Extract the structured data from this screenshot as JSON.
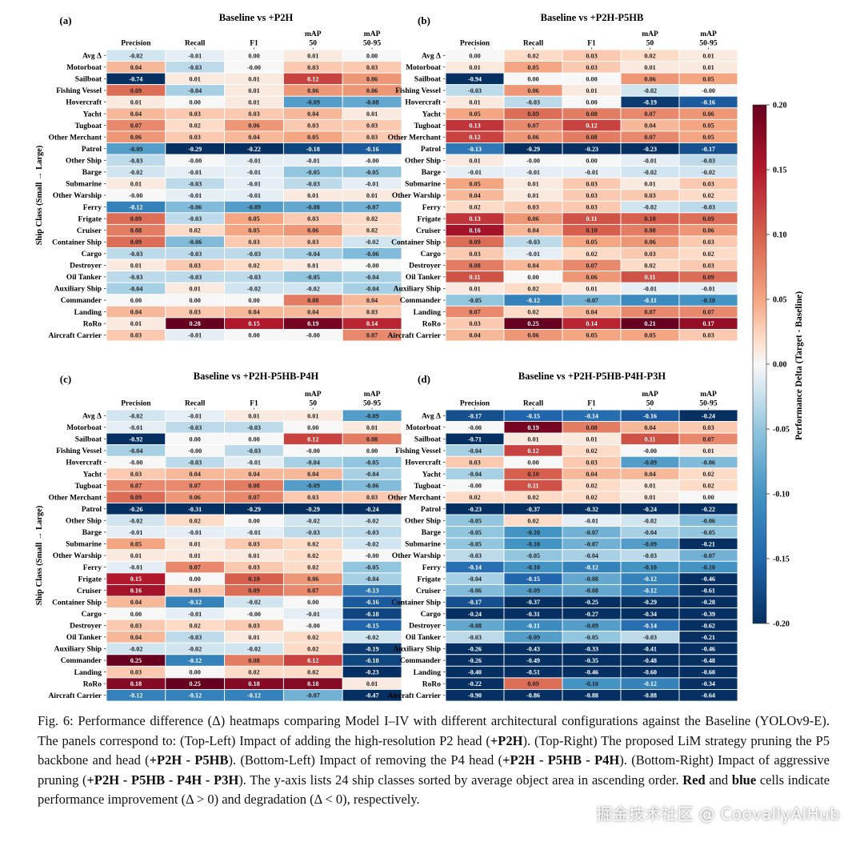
{
  "colorbar": {
    "label": "Performance Delta (Target - Baseline)",
    "range": [
      -0.2,
      0.2
    ],
    "ticks": [
      "0.20",
      "0.15",
      "0.10",
      "0.05",
      "0.00",
      "-0.05",
      "-0.10",
      "-0.15",
      "-0.20"
    ],
    "colors": {
      "neg": "#08306b",
      "mid": "#f7f7f7",
      "pos": "#67000d"
    }
  },
  "y_axis_label": "Ship Class (Small → Large)",
  "columns": [
    "Precision",
    "Recall",
    "F1",
    "mAP 50",
    "mAP 50-95"
  ],
  "rows": [
    "Avg Δ",
    "Motorboat",
    "Sailboat",
    "Fishing Vessel",
    "Hovercraft",
    "Yacht",
    "Tugboat",
    "Other Merchant",
    "Patrol",
    "Other Ship",
    "Barge",
    "Submarine",
    "Other Warship",
    "Ferry",
    "Frigate",
    "Cruiser",
    "Container Ship",
    "Cargo",
    "Destroyer",
    "Oil Tanker",
    "Auxiliary Ship",
    "Commander",
    "Landing",
    "RoRo",
    "Aircraft Carrier"
  ],
  "chart_data": [
    {
      "type": "heatmap",
      "panel_label": "(a)",
      "title": "Baseline vs +P2H",
      "values": [
        [
          -0.02,
          -0.01,
          0.0,
          0.01,
          0.0
        ],
        [
          0.04,
          -0.03,
          -0.0,
          0.03,
          0.03
        ],
        [
          -0.74,
          0.01,
          0.01,
          0.12,
          0.06
        ],
        [
          0.09,
          -0.04,
          0.01,
          0.06,
          0.06
        ],
        [
          0.01,
          0.0,
          0.01,
          -0.09,
          -0.08
        ],
        [
          0.04,
          0.03,
          0.03,
          0.04,
          0.01
        ],
        [
          0.07,
          0.02,
          0.06,
          0.03,
          0.03
        ],
        [
          0.06,
          0.03,
          0.04,
          0.05,
          0.03
        ],
        [
          -0.09,
          -0.29,
          -0.22,
          -0.18,
          -0.16
        ],
        [
          -0.03,
          -0.0,
          -0.01,
          -0.01,
          -0.0
        ],
        [
          -0.02,
          -0.01,
          -0.01,
          -0.05,
          -0.05
        ],
        [
          0.01,
          -0.03,
          -0.01,
          -0.03,
          -0.01
        ],
        [
          -0.0,
          -0.01,
          -0.01,
          0.01,
          0.01
        ],
        [
          -0.12,
          -0.06,
          -0.09,
          -0.08,
          -0.07
        ],
        [
          0.09,
          -0.03,
          0.05,
          0.03,
          0.02
        ],
        [
          0.08,
          0.02,
          0.05,
          0.06,
          0.02
        ],
        [
          0.09,
          -0.06,
          0.03,
          0.03,
          -0.02
        ],
        [
          -0.03,
          -0.03,
          -0.03,
          -0.04,
          -0.06
        ],
        [
          0.01,
          0.03,
          0.02,
          0.01,
          -0.0
        ],
        [
          -0.03,
          -0.03,
          -0.03,
          -0.05,
          -0.04
        ],
        [
          -0.04,
          0.01,
          -0.02,
          -0.02,
          -0.04
        ],
        [
          0.0,
          0.0,
          0.0,
          0.08,
          0.04
        ],
        [
          0.04,
          0.03,
          0.04,
          0.04,
          0.03
        ],
        [
          0.01,
          0.28,
          0.15,
          0.19,
          0.14
        ],
        [
          0.03,
          -0.01,
          0.0,
          -0.0,
          0.07
        ]
      ]
    },
    {
      "type": "heatmap",
      "panel_label": "(b)",
      "title": "Baseline vs +P2H-P5HB",
      "values": [
        [
          0.0,
          0.02,
          0.03,
          0.02,
          0.01
        ],
        [
          0.01,
          0.05,
          0.03,
          0.01,
          0.01
        ],
        [
          -0.94,
          0.0,
          0.0,
          0.06,
          0.05
        ],
        [
          -0.03,
          0.06,
          0.01,
          -0.02,
          -0.0
        ],
        [
          0.01,
          -0.03,
          0.0,
          -0.19,
          -0.16
        ],
        [
          0.05,
          0.09,
          0.08,
          0.07,
          0.06
        ],
        [
          0.13,
          0.07,
          0.12,
          0.04,
          0.05
        ],
        [
          0.12,
          0.06,
          0.08,
          0.07,
          0.05
        ],
        [
          -0.13,
          -0.29,
          -0.23,
          -0.23,
          -0.17
        ],
        [
          0.01,
          -0.0,
          0.0,
          -0.01,
          -0.03
        ],
        [
          -0.01,
          -0.01,
          -0.01,
          -0.02,
          -0.02
        ],
        [
          0.05,
          0.01,
          0.03,
          0.01,
          0.03
        ],
        [
          0.04,
          0.01,
          0.03,
          0.03,
          0.02
        ],
        [
          0.02,
          0.03,
          0.03,
          -0.02,
          -0.03
        ],
        [
          0.13,
          0.06,
          0.11,
          0.1,
          0.09
        ],
        [
          0.16,
          0.04,
          0.1,
          0.08,
          0.06
        ],
        [
          0.09,
          -0.03,
          0.05,
          0.06,
          0.03
        ],
        [
          0.03,
          -0.01,
          0.02,
          0.03,
          0.02
        ],
        [
          0.08,
          0.04,
          0.07,
          0.02,
          0.03
        ],
        [
          0.11,
          0.0,
          0.06,
          0.11,
          0.09
        ],
        [
          0.01,
          0.02,
          0.01,
          -0.01,
          -0.01
        ],
        [
          -0.05,
          -0.12,
          -0.07,
          -0.11,
          -0.1
        ],
        [
          0.07,
          0.02,
          0.04,
          0.07,
          0.07
        ],
        [
          0.03,
          0.25,
          0.14,
          0.21,
          0.17
        ],
        [
          0.04,
          0.06,
          0.05,
          0.05,
          0.03
        ]
      ]
    },
    {
      "type": "heatmap",
      "panel_label": "(c)",
      "title": "Baseline vs +P2H-P5HB-P4H",
      "values": [
        [
          -0.02,
          -0.01,
          0.01,
          0.01,
          -0.09
        ],
        [
          -0.01,
          -0.03,
          -0.03,
          0.0,
          0.01
        ],
        [
          -0.92,
          0.0,
          0.0,
          0.12,
          0.08
        ],
        [
          -0.04,
          -0.0,
          -0.03,
          -0.0,
          0.0
        ],
        [
          -0.0,
          -0.03,
          -0.01,
          -0.04,
          -0.05
        ],
        [
          0.03,
          0.04,
          0.04,
          0.04,
          -0.04
        ],
        [
          0.07,
          0.07,
          0.08,
          -0.09,
          -0.06
        ],
        [
          0.09,
          0.06,
          0.07,
          0.03,
          0.03
        ],
        [
          -0.26,
          -0.31,
          -0.29,
          -0.29,
          -0.24
        ],
        [
          -0.02,
          0.02,
          0.0,
          -0.02,
          -0.02
        ],
        [
          -0.01,
          -0.01,
          -0.01,
          -0.03,
          -0.03
        ],
        [
          0.05,
          0.01,
          0.03,
          0.02,
          -0.02
        ],
        [
          0.01,
          0.01,
          0.01,
          0.02,
          -0.0
        ],
        [
          -0.01,
          0.07,
          0.03,
          0.02,
          -0.05
        ],
        [
          0.15,
          0.0,
          0.1,
          0.06,
          -0.04
        ],
        [
          0.16,
          0.03,
          0.09,
          0.07,
          -0.13
        ],
        [
          0.04,
          -0.12,
          -0.02,
          0.0,
          -0.16
        ],
        [
          0.0,
          -0.01,
          -0.0,
          -0.01,
          -0.18
        ],
        [
          0.03,
          0.02,
          0.03,
          -0.0,
          -0.15
        ],
        [
          0.04,
          -0.03,
          0.01,
          0.02,
          -0.02
        ],
        [
          -0.02,
          -0.02,
          -0.02,
          0.02,
          -0.19
        ],
        [
          0.25,
          -0.12,
          0.08,
          0.12,
          -0.18
        ],
        [
          0.03,
          0.0,
          0.02,
          0.02,
          -0.23
        ],
        [
          0.18,
          0.25,
          0.18,
          0.18,
          0.01
        ],
        [
          -0.12,
          -0.12,
          -0.12,
          -0.07,
          -0.47
        ]
      ]
    },
    {
      "type": "heatmap",
      "panel_label": "(d)",
      "title": "Baseline vs +P2H-P5HB-P4H-P3H",
      "values": [
        [
          -0.17,
          -0.15,
          -0.14,
          -0.16,
          -0.24
        ],
        [
          -0.0,
          0.19,
          0.08,
          0.04,
          0.03
        ],
        [
          -0.71,
          0.01,
          0.01,
          0.11,
          0.07
        ],
        [
          -0.04,
          0.12,
          0.02,
          -0.0,
          0.01
        ],
        [
          0.03,
          0.0,
          0.03,
          -0.09,
          -0.06
        ],
        [
          -0.04,
          0.1,
          0.04,
          0.04,
          0.02
        ],
        [
          -0.0,
          0.11,
          0.02,
          0.01,
          0.02
        ],
        [
          0.02,
          0.02,
          0.02,
          0.01,
          0.0
        ],
        [
          -0.23,
          -0.37,
          -0.32,
          -0.24,
          -0.22
        ],
        [
          -0.05,
          0.02,
          -0.01,
          -0.02,
          -0.06
        ],
        [
          -0.05,
          -0.1,
          -0.07,
          -0.04,
          -0.05
        ],
        [
          -0.05,
          -0.1,
          -0.07,
          -0.09,
          -0.21
        ],
        [
          -0.03,
          -0.05,
          -0.04,
          -0.03,
          -0.07
        ],
        [
          -0.14,
          -0.1,
          -0.12,
          -0.1,
          -0.1
        ],
        [
          -0.04,
          -0.15,
          -0.08,
          -0.12,
          -0.46
        ],
        [
          -0.06,
          -0.09,
          -0.08,
          -0.12,
          -0.61
        ],
        [
          -0.17,
          -0.37,
          -0.25,
          -0.29,
          -0.28
        ],
        [
          -0.24,
          -0.31,
          -0.27,
          -0.34,
          -0.39
        ],
        [
          -0.08,
          -0.11,
          -0.09,
          -0.14,
          -0.62
        ],
        [
          -0.03,
          -0.09,
          -0.05,
          -0.03,
          -0.21
        ],
        [
          -0.26,
          -0.43,
          -0.33,
          -0.41,
          -0.46
        ],
        [
          -0.26,
          -0.49,
          -0.35,
          -0.48,
          -0.48
        ],
        [
          -0.4,
          -0.51,
          -0.46,
          -0.6,
          -0.6
        ],
        [
          -0.22,
          0.09,
          -0.1,
          -0.12,
          -0.34
        ],
        [
          -0.9,
          -0.86,
          -0.88,
          -0.88,
          -0.64
        ]
      ]
    }
  ],
  "caption": {
    "fig_label": "Fig. 6:",
    "p1": " Performance difference (Δ) heatmaps comparing Model I–IV with different architectural configurations against the Baseline (YOLOv9-E). The panels correspond to: (Top-Left) Impact of adding the high-resolution P2 head (",
    "b1": "+P2H",
    "p2": "). (Top-Right) The proposed LiM strategy pruning the P5 backbone and head (",
    "b2": "+P2H - P5HB",
    "p3": "). (Bottom-Left) Impact of removing the P4 head (",
    "b3": "+P2H - P5HB - P4H",
    "p4": "). (Bottom-Right) Impact of aggressive pruning (",
    "b4": "+P2H - P5HB - P4H - P3H",
    "p5": "). The y-axis lists 24 ship classes sorted by average object area in ascending order. ",
    "b5": "Red",
    "p6": " and ",
    "b6": "blue",
    "p7": " cells indicate performance improvement (Δ > 0) and degradation (Δ < 0), respectively."
  },
  "watermark": "掘金技术社区 @ CoovallyAIHub"
}
